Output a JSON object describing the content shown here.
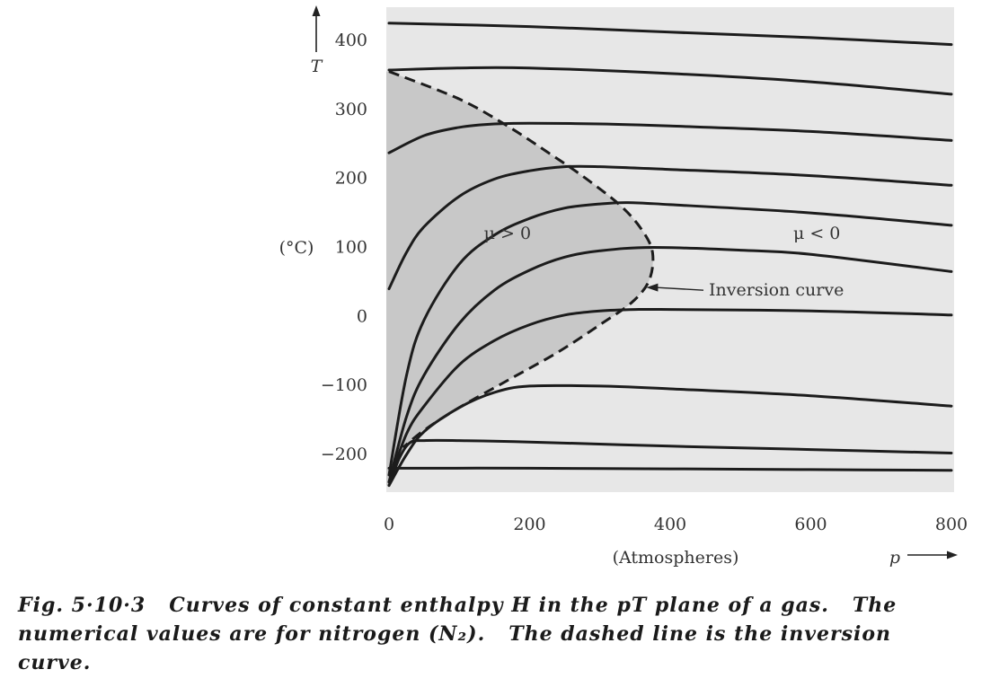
{
  "chart_data": {
    "type": "line",
    "xlabel": "(Atmospheres)",
    "x_symbol": "p",
    "ylabel": "(°C)",
    "y_symbol": "T",
    "xlim": [
      0,
      800
    ],
    "ylim": [
      -250,
      450
    ],
    "x_ticks": [
      "0",
      "200",
      "400",
      "600",
      "800"
    ],
    "y_ticks": [
      "400",
      "300",
      "200",
      "100",
      "0",
      "−100",
      "−200"
    ],
    "grid": false,
    "series": [
      {
        "x": [
          0,
          200,
          400,
          600,
          800
        ],
        "y": [
          425,
          420,
          412,
          404,
          394
        ]
      },
      {
        "x": [
          0,
          100,
          200,
          400,
          600,
          800
        ],
        "y": [
          357,
          360,
          360,
          352,
          340,
          322
        ]
      },
      {
        "x": [
          0,
          50,
          100,
          150,
          200,
          300,
          400,
          600,
          800
        ],
        "y": [
          237,
          262,
          274,
          279,
          280,
          279,
          276,
          268,
          255
        ]
      },
      {
        "x": [
          0,
          25,
          50,
          100,
          150,
          200,
          250,
          300,
          400,
          600,
          800
        ],
        "y": [
          40,
          93,
          130,
          174,
          199,
          211,
          217,
          217,
          213,
          204,
          190
        ]
      },
      {
        "x": [
          0,
          25,
          50,
          100,
          150,
          200,
          250,
          300,
          340,
          400,
          600,
          800
        ],
        "y": [
          -230,
          -85,
          -5,
          76,
          118,
          142,
          157,
          163,
          165,
          162,
          150,
          132
        ]
      },
      {
        "x": [
          0,
          25,
          50,
          100,
          150,
          200,
          250,
          300,
          375,
          500,
          600,
          800
        ],
        "y": [
          -240,
          -145,
          -85,
          -10,
          38,
          67,
          86,
          95,
          100,
          96,
          90,
          65
        ]
      },
      {
        "x": [
          0,
          25,
          50,
          100,
          150,
          200,
          250,
          300,
          350,
          400,
          600,
          800
        ],
        "y": [
          -240,
          -170,
          -130,
          -70,
          -35,
          -12,
          2,
          8,
          10,
          10,
          8,
          2
        ]
      },
      {
        "x": [
          0,
          25,
          50,
          100,
          150,
          200,
          300,
          400,
          600,
          800
        ],
        "y": [
          -245,
          -200,
          -167,
          -132,
          -110,
          -101,
          -101,
          -105,
          -115,
          -130
        ]
      },
      {
        "x": [
          0,
          15,
          30,
          50,
          100,
          200,
          400,
          600,
          800
        ],
        "y": [
          -245,
          -205,
          -183,
          -180,
          -180,
          -182,
          -188,
          -193,
          -198
        ]
      },
      {
        "x": [
          0,
          200,
          400,
          600,
          800
        ],
        "y": [
          -220,
          -220,
          -221,
          -222,
          -223
        ]
      }
    ],
    "inversion_curve": {
      "name": "Inversion curve",
      "x": [
        0,
        100,
        170,
        230,
        280,
        330,
        360,
        375,
        370,
        345,
        300,
        240,
        170,
        100,
        50,
        20
      ],
      "y": [
        355,
        315,
        275,
        235,
        200,
        160,
        125,
        92,
        52,
        20,
        -12,
        -52,
        -92,
        -132,
        -165,
        -190
      ]
    },
    "annotations": [
      {
        "text": "μ > 0",
        "x": 135,
        "y": 120
      },
      {
        "text": "μ < 0",
        "x": 575,
        "y": 120
      },
      {
        "text": "Inversion curve",
        "x": 455,
        "y": 38
      }
    ]
  },
  "caption": {
    "line1": "Fig. 5·10·3   Curves of constant enthalpy H in the pT plane of a gas.   The",
    "line2": "numerical values are for nitrogen (N₂).   The dashed line is the inversion",
    "line3": "curve."
  },
  "colors": {
    "plot_bg": "#e7e7e7",
    "region_bg": "#c8c8c8",
    "curve": "#1c1c1c"
  }
}
